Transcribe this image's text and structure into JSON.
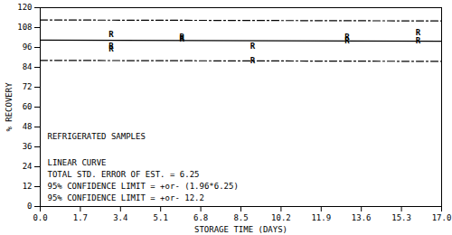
{
  "chart_data": {
    "type": "scatter",
    "xlabel": "STORAGE TIME (DAYS)",
    "ylabel": "% RECOVERY",
    "annotations": [
      "REFRIGERATED SAMPLES",
      "LINEAR CURVE",
      "TOTAL STD. ERROR OF EST. = 6.25",
      "95% CONFIDENCE LIMIT = +or- (1.96*6.25)",
      "95% CONFIDENCE LIMIT = +or- 12.2"
    ],
    "xlim": [
      0,
      17
    ],
    "xticks": [
      {
        "value": 0,
        "label": "0.0"
      },
      1.7,
      3.4,
      5.1,
      6.8,
      8.5,
      10.2,
      11.9,
      13.6,
      15.3,
      {
        "value": 17,
        "label": "17.0"
      }
    ],
    "ylim": [
      0,
      120
    ],
    "yticks": [
      0,
      12,
      24,
      36,
      48,
      60,
      72,
      84,
      96,
      108,
      120
    ],
    "grid": false,
    "series": [
      {
        "type": "scatter",
        "marker": "R",
        "color": "#000000",
        "x": [
          3,
          3,
          3,
          6,
          6,
          9,
          9,
          13,
          13,
          16,
          16
        ],
        "values": [
          104,
          97,
          95,
          102,
          101,
          97,
          88,
          102,
          100,
          105,
          100
        ]
      },
      {
        "type": "line",
        "line_style": "solid",
        "color": "#000000",
        "x": [
          0,
          17
        ],
        "values": [
          100.4,
          99.8
        ]
      },
      {
        "type": "line",
        "line_style": "dashdot",
        "color": "#000000",
        "x": [
          0,
          17
        ],
        "values": [
          112.6,
          112.0
        ]
      },
      {
        "type": "line",
        "line_style": "dashdot",
        "color": "#000000",
        "x": [
          0,
          17
        ],
        "values": [
          88.2,
          87.6
        ]
      }
    ]
  }
}
